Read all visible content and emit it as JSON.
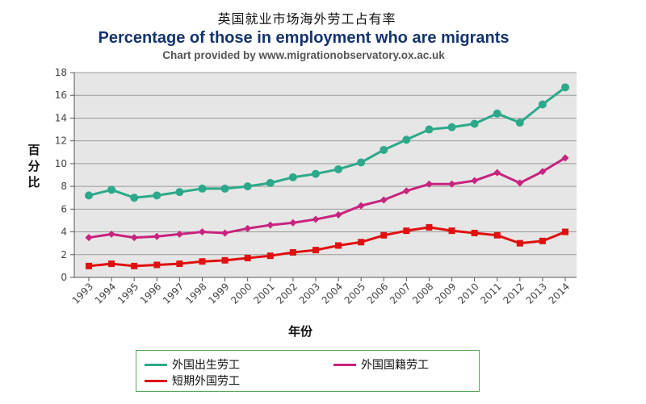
{
  "chart_data": {
    "type": "line",
    "title_cn": "英国就业市场海外劳工占有率",
    "title": "Percentage of those in employment who are migrants",
    "subtitle": "Chart provided by www.migrationobservatory.ox.ac.uk",
    "xlabel": "年份",
    "ylabel": "百分比",
    "ylim": [
      0,
      18
    ],
    "yticks": [
      "0",
      "2",
      "4",
      "6",
      "8",
      "10",
      "12",
      "14",
      "16",
      "18"
    ],
    "categories": [
      "1993",
      "1994",
      "1995",
      "1996",
      "1997",
      "1998",
      "1999",
      "2000",
      "2001",
      "2002",
      "2003",
      "2004",
      "2005",
      "2006",
      "2007",
      "2008",
      "2009",
      "2010",
      "2011",
      "2012",
      "2013",
      "2014"
    ],
    "series": [
      {
        "name": "外国出生劳工",
        "color": "#2ca98a",
        "marker": "circle",
        "values": [
          7.2,
          7.7,
          7.0,
          7.2,
          7.5,
          7.8,
          7.8,
          8.0,
          8.3,
          8.8,
          9.1,
          9.5,
          10.1,
          11.2,
          12.1,
          13.0,
          13.2,
          13.5,
          14.4,
          13.6,
          15.2,
          16.7
        ]
      },
      {
        "name": "外国国籍劳工",
        "color": "#c8237f",
        "marker": "diamond",
        "values": [
          3.5,
          3.8,
          3.5,
          3.6,
          3.8,
          4.0,
          3.9,
          4.3,
          4.6,
          4.8,
          5.1,
          5.5,
          6.3,
          6.8,
          7.6,
          8.2,
          8.2,
          8.5,
          9.2,
          8.3,
          9.3,
          10.5
        ]
      },
      {
        "name": "短期外国劳工",
        "color": "#e01010",
        "marker": "square",
        "values": [
          1.0,
          1.2,
          1.0,
          1.1,
          1.2,
          1.4,
          1.5,
          1.7,
          1.9,
          2.2,
          2.4,
          2.8,
          3.1,
          3.7,
          4.1,
          4.4,
          4.1,
          3.9,
          3.7,
          3.0,
          3.2,
          4.0
        ]
      }
    ],
    "grid": true,
    "legend": "bottom"
  }
}
